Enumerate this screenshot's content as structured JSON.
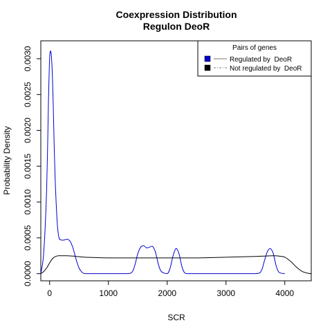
{
  "chart_data": {
    "type": "line",
    "title": "Coexpression Distribution",
    "subtitle": "Regulon DeoR",
    "xlabel": "SCR",
    "ylabel": "Probability Density",
    "xlim": [
      -150,
      4450
    ],
    "ylim": [
      -0.0001,
      0.00325
    ],
    "x_ticks": [
      0,
      1000,
      2000,
      3000,
      4000
    ],
    "x_tick_labels": [
      "0",
      "1000",
      "2000",
      "3000",
      "4000"
    ],
    "y_ticks": [
      0.0,
      0.0005,
      0.001,
      0.0015,
      0.002,
      0.0025,
      0.003
    ],
    "y_tick_labels": [
      "0.0000",
      "0.0005",
      "0.0010",
      "0.0015",
      "0.0020",
      "0.0025",
      "0.0030"
    ],
    "grid": false,
    "legend": {
      "title": "Pairs of genes",
      "placement": "top-right",
      "entries": [
        "Regulated by  DeoR",
        "Not regulated by  DeoR"
      ]
    },
    "series": [
      {
        "name": "Regulated by  DeoR",
        "color": "#0000cc",
        "x": [
          -170,
          -100,
          -50,
          -20,
          0,
          20,
          40,
          60,
          80,
          100,
          130,
          160,
          200,
          250,
          300,
          350,
          400,
          450,
          500,
          550,
          600,
          700,
          1000,
          1300,
          1400,
          1450,
          1500,
          1550,
          1600,
          1650,
          1700,
          1750,
          1800,
          1850,
          1900,
          2000,
          2050,
          2100,
          2150,
          2200,
          2250,
          2300,
          2400,
          3000,
          3500,
          3600,
          3650,
          3700,
          3750,
          3800,
          3850,
          3900,
          4000
        ],
        "y": [
          0.0,
          0.0003,
          0.0012,
          0.0024,
          0.003,
          0.0031,
          0.0029,
          0.0024,
          0.0017,
          0.0012,
          0.0007,
          0.0005,
          0.00047,
          0.00047,
          0.00048,
          0.00045,
          0.00035,
          0.0002,
          8e-05,
          2e-05,
          0.0,
          0.0,
          0.0,
          0.0,
          2e-05,
          0.00012,
          0.00028,
          0.00037,
          0.00039,
          0.00036,
          0.00037,
          0.00038,
          0.0003,
          0.00013,
          3e-05,
          0.0,
          8e-05,
          0.00025,
          0.00035,
          0.00028,
          0.0001,
          1e-05,
          0.0,
          0.0,
          0.0,
          4e-05,
          0.00017,
          0.0003,
          0.00035,
          0.00029,
          0.00012,
          2e-05,
          0.0
        ]
      },
      {
        "name": "Not regulated by  DeoR",
        "color": "#000000",
        "x": [
          -170,
          -100,
          -50,
          0,
          50,
          100,
          150,
          200,
          300,
          400,
          600,
          1000,
          1500,
          2000,
          2500,
          3000,
          3500,
          3800,
          3900,
          4000,
          4100,
          4200,
          4300,
          4400,
          4480
        ],
        "y": [
          0.0,
          3e-05,
          8e-05,
          0.00015,
          0.00021,
          0.00024,
          0.00025,
          0.00025,
          0.00025,
          0.000245,
          0.00023,
          0.00022,
          0.00022,
          0.00022,
          0.00022,
          0.00023,
          0.00024,
          0.00025,
          0.000245,
          0.00023,
          0.00017,
          9e-05,
          3e-05,
          5e-06,
          0.0
        ]
      }
    ]
  }
}
